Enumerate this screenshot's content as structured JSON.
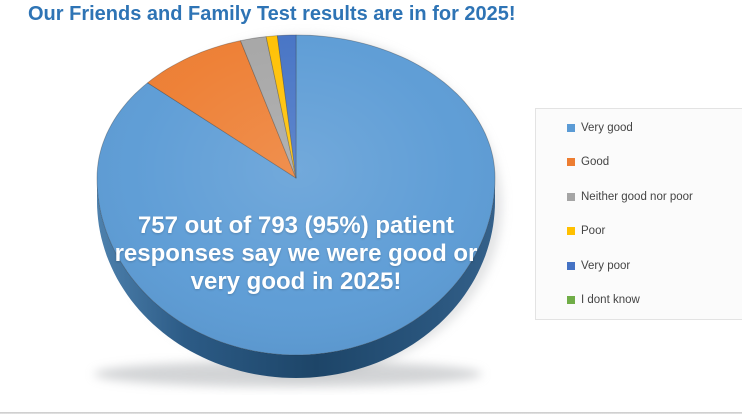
{
  "chart_data": {
    "type": "pie",
    "style": "3d",
    "title": "Our Friends and Family Test results are in for 2025!",
    "categories": [
      "Very good",
      "Good",
      "Neither good nor poor",
      "Poor",
      "Very poor",
      "I dont know"
    ],
    "values_pct_estimated": [
      86.6,
      8.9,
      2.1,
      0.9,
      1.5,
      0
    ],
    "colors": [
      "#5B9BD5",
      "#ED7D31",
      "#A5A5A5",
      "#FFC000",
      "#4472C4",
      "#70AD47"
    ],
    "start_angle_deg": 0,
    "direction": "clockwise",
    "legend_position": "right",
    "annotation": "757 out of 793 (95%) patient responses say we were good or very good in 2025!",
    "annotation_lines": [
      "757 out of 793 (95%) patient",
      "responses say we were good or",
      "very good in 2025!"
    ]
  },
  "colors": {
    "title_text": "#2E74B5",
    "caption_text": "#ffffff",
    "rim_dark": "#1d4568",
    "rim_light": "#4e81ad",
    "legend_text": "#444444",
    "legend_border": "#e3e3e3"
  }
}
